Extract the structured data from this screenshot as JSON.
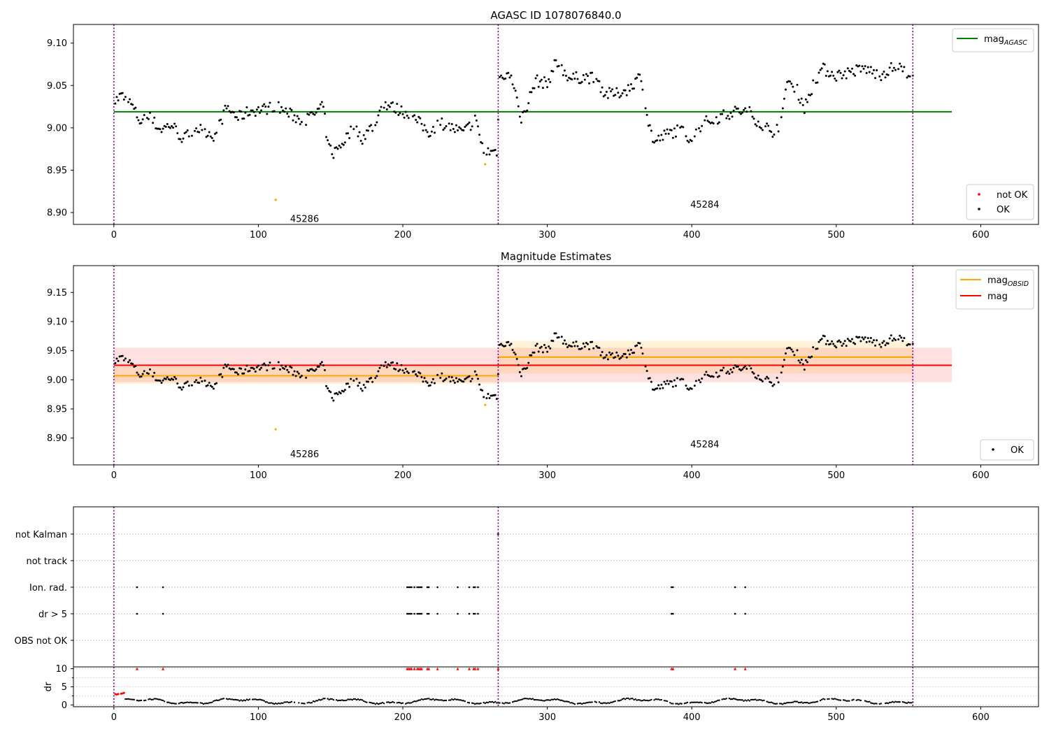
{
  "figure": {
    "title_top": "AGASC ID 1078076840.0",
    "title_middle": "Magnitude Estimates"
  },
  "chart_data": [
    {
      "id": "top",
      "type": "scatter",
      "title": "AGASC ID 1078076840.0",
      "xlim": [
        -28,
        640
      ],
      "ylim": [
        8.886,
        9.122
      ],
      "xticks": [
        0,
        100,
        200,
        300,
        400,
        500,
        600
      ],
      "yticks": [
        8.9,
        8.95,
        9.0,
        9.05,
        9.1
      ],
      "ytick_format": 2,
      "obsid_boundaries": [
        0,
        266,
        553
      ],
      "obsid_labels": [
        {
          "text": "45286",
          "x": 132,
          "y": 8.893
        },
        {
          "text": "45284",
          "x": 409,
          "y": 8.91
        }
      ],
      "hlines": [
        {
          "name": "mag_AGASC",
          "y": 9.019,
          "x0": 0,
          "x1": 580,
          "color": "#008000"
        }
      ],
      "highlighted_points": [
        {
          "x": 112,
          "y": 8.915,
          "color": "#ffa500"
        },
        {
          "x": 257,
          "y": 8.957,
          "color": "#ffa500"
        }
      ],
      "legend_lines": [
        {
          "label": "mag",
          "sub": "AGASC",
          "color": "#008000"
        }
      ],
      "legend_markers": [
        {
          "label": "not OK",
          "color": "#ff0000"
        },
        {
          "label": "OK",
          "color": "#000000"
        }
      ]
    },
    {
      "id": "middle",
      "type": "scatter",
      "title": "Magnitude Estimates",
      "xlim": [
        -28,
        640
      ],
      "ylim": [
        8.854,
        9.196
      ],
      "xticks": [
        0,
        100,
        200,
        300,
        400,
        500,
        600
      ],
      "yticks": [
        8.9,
        8.95,
        9.0,
        9.05,
        9.1,
        9.15
      ],
      "ytick_format": 2,
      "obsid_boundaries": [
        0,
        266,
        553
      ],
      "obsid_labels": [
        {
          "text": "45286",
          "x": 132,
          "y": 8.873
        },
        {
          "text": "45284",
          "x": 409,
          "y": 8.89
        }
      ],
      "bands": [
        {
          "x0": 0,
          "x1": 580,
          "y0": 8.996,
          "y1": 9.055,
          "color": "#ff0000",
          "opacity": 0.12
        },
        {
          "x0": 0,
          "x1": 266,
          "y0": 8.993,
          "y1": 9.023,
          "color": "#ffa500",
          "opacity": 0.15
        },
        {
          "x0": 266,
          "x1": 553,
          "y0": 9.011,
          "y1": 9.067,
          "color": "#ffa500",
          "opacity": 0.15
        }
      ],
      "hlines": [
        {
          "name": "mag",
          "y": 9.025,
          "x0": 0,
          "x1": 580,
          "color": "#ff0000"
        },
        {
          "name": "mag_OBSID_1",
          "y": 9.007,
          "x0": 0,
          "x1": 266,
          "color": "#ffa500"
        },
        {
          "name": "mag_OBSID_2",
          "y": 9.039,
          "x0": 266,
          "x1": 553,
          "color": "#ffa500"
        }
      ],
      "highlighted_points": [
        {
          "x": 112,
          "y": 8.915,
          "color": "#ffa500"
        },
        {
          "x": 257,
          "y": 8.957,
          "color": "#ffa500"
        }
      ],
      "legend_lines": [
        {
          "label": "mag",
          "sub": "OBSID",
          "color": "#ffa500"
        },
        {
          "label": "mag",
          "sub": "",
          "color": "#ff0000"
        }
      ],
      "legend_markers": [
        {
          "label": "OK",
          "color": "#000000"
        }
      ]
    },
    {
      "id": "flags",
      "type": "scatter",
      "xlim": [
        -28,
        640
      ],
      "categories": [
        "not Kalman",
        "not track",
        "Ion. rad.",
        "dr > 5",
        "OBS not OK"
      ],
      "obsid_boundaries": [
        0,
        266,
        553
      ],
      "flag_points": [
        {
          "category": "not Kalman",
          "x": [
            266
          ]
        },
        {
          "category": "Ion. rad.",
          "x": [
            16,
            34,
            203,
            204,
            205,
            206,
            208,
            210,
            211,
            212,
            213,
            217,
            218,
            224,
            238,
            246,
            249,
            250,
            252,
            386,
            387,
            430,
            437
          ]
        },
        {
          "category": "dr > 5",
          "x": [
            16,
            34,
            203,
            204,
            205,
            206,
            208,
            210,
            211,
            212,
            213,
            217,
            218,
            224,
            238,
            246,
            249,
            250,
            252,
            386,
            387,
            430,
            437
          ]
        }
      ]
    },
    {
      "id": "dr",
      "type": "scatter",
      "ylabel": "dr",
      "xlim": [
        -28,
        640
      ],
      "ylim": [
        -0.5,
        10.5
      ],
      "xticks": [
        0,
        100,
        200,
        300,
        400,
        500,
        600
      ],
      "yticks": [
        0,
        5,
        10
      ],
      "ygrid": [
        0,
        2.5,
        5,
        7.5,
        10
      ],
      "obsid_boundaries": [
        0,
        266,
        553
      ],
      "red_points": [
        {
          "x": 1,
          "y": 3.0
        },
        {
          "x": 2,
          "y": 2.9
        },
        {
          "x": 3,
          "y": 3.0
        },
        {
          "x": 5,
          "y": 3.1
        },
        {
          "x": 6,
          "y": 3.2
        },
        {
          "x": 7,
          "y": 3.3
        }
      ],
      "red_markers_at_10": [
        16,
        34,
        203,
        204,
        205,
        206,
        208,
        210,
        211,
        212,
        213,
        217,
        218,
        224,
        238,
        246,
        249,
        250,
        252,
        266,
        386,
        387,
        430,
        437
      ]
    }
  ]
}
